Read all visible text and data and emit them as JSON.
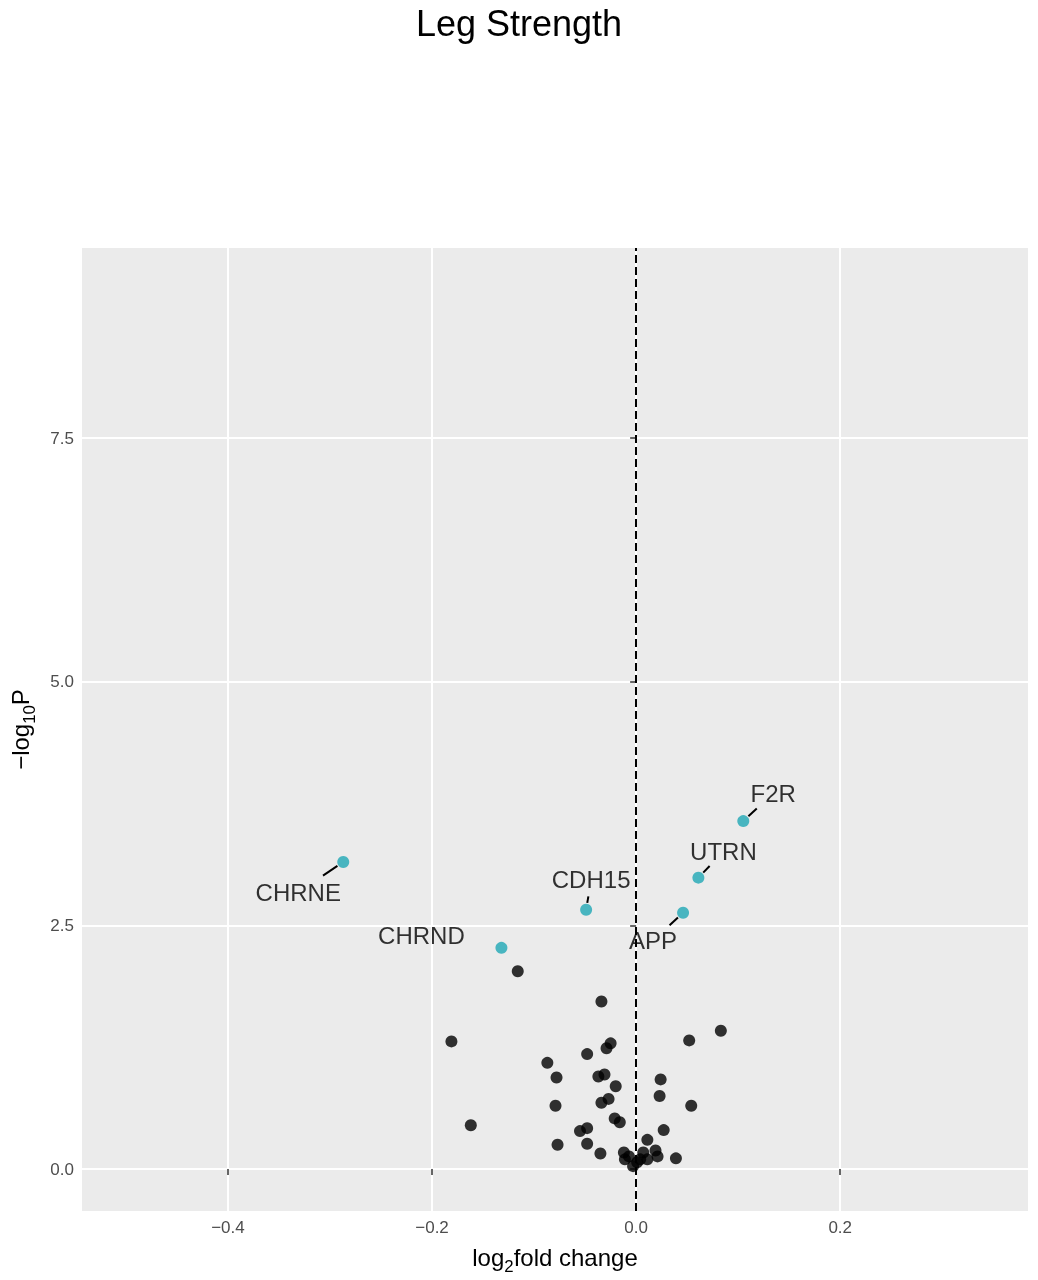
{
  "chart_data": {
    "type": "scatter",
    "title": "Leg Strength",
    "xlabel": "log$_{2}$fold change",
    "ylabel": "−log$_{10}$P",
    "xlim": [
      -0.543,
      0.384
    ],
    "xticks": [
      -0.4,
      -0.2,
      {
        "value": 0,
        "label": "0.0"
      },
      0.2
    ],
    "ylim": [
      -0.43,
      9.45
    ],
    "yticks": [
      {
        "value": 0,
        "label": "0.0"
      },
      2.5,
      {
        "value": 5,
        "label": "5.0"
      },
      7.5
    ],
    "grid": true,
    "marker": "circle",
    "ref_lines": [
      {
        "axis": "x",
        "value": 0,
        "label": null,
        "color": "#000000",
        "line_style": "dashed"
      }
    ],
    "series": [
      {
        "color": "#000000",
        "x": [
          -0.116,
          -0.034,
          -0.181,
          0.083,
          0.052,
          -0.025,
          -0.029,
          -0.048,
          -0.087,
          -0.078,
          -0.037,
          -0.031,
          0.024,
          -0.02,
          0.023,
          -0.027,
          -0.034,
          -0.079,
          0.054,
          -0.021,
          -0.016,
          -0.162,
          0.027,
          -0.055,
          -0.048,
          0.011,
          -0.077,
          -0.048,
          -0.035,
          0.039,
          0.019,
          0.021,
          -0.012,
          -0.007,
          -0.011,
          0.007,
          0.011,
          0.004,
          -0.003,
          0.001
        ],
        "values": [
          2.03,
          1.72,
          1.31,
          1.42,
          1.32,
          1.29,
          1.24,
          1.18,
          1.09,
          0.94,
          0.95,
          0.97,
          0.92,
          0.85,
          0.75,
          0.72,
          0.68,
          0.65,
          0.65,
          0.52,
          0.48,
          0.45,
          0.4,
          0.39,
          0.42,
          0.3,
          0.25,
          0.26,
          0.16,
          0.11,
          0.19,
          0.13,
          0.17,
          0.13,
          0.1,
          0.17,
          0.1,
          0.1,
          0.03,
          0.07
        ]
      },
      {
        "color": "#1fa8b5",
        "x": [
          -0.287,
          -0.049,
          -0.132,
          0.046,
          0.061,
          0.105
        ],
        "values": [
          3.15,
          2.66,
          2.27,
          2.63,
          2.99,
          3.57
        ]
      }
    ],
    "annotations": [
      {
        "text": "CHRNE",
        "x": -0.287,
        "y": 3.15
      },
      {
        "text": "CDH15",
        "x": -0.049,
        "y": 2.66
      },
      {
        "text": "CHRND",
        "x": -0.132,
        "y": 2.27
      },
      {
        "text": "APP",
        "x": 0.046,
        "y": 2.63
      },
      {
        "text": "UTRN",
        "x": 0.061,
        "y": 2.99
      },
      {
        "text": "F2R",
        "x": 0.105,
        "y": 3.57
      }
    ]
  }
}
